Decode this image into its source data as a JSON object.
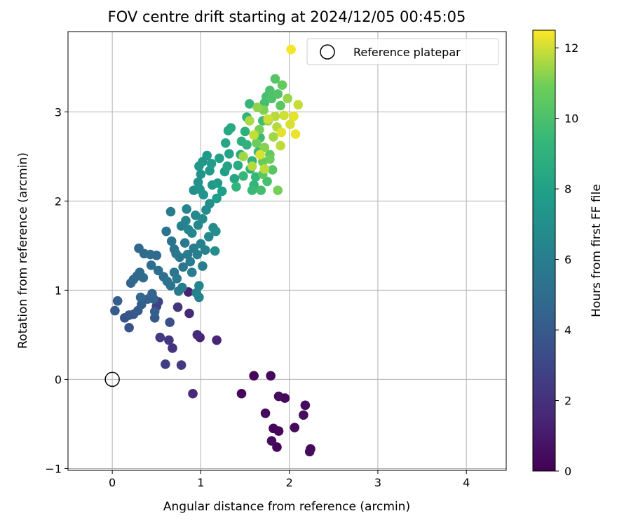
{
  "chart_data": {
    "type": "scatter",
    "title": "FOV centre drift starting at 2024/12/05 00:45:05",
    "xlabel": "Angular distance from reference (arcmin)",
    "ylabel": "Rotation from reference (arcmin)",
    "xlim": [
      -0.5,
      4.45
    ],
    "ylim": [
      -1.02,
      3.9
    ],
    "xticks": [
      0,
      1,
      2,
      3,
      4
    ],
    "yticks": [
      -1,
      0,
      1,
      2,
      3
    ],
    "xtick_labels": [
      "0",
      "1",
      "2",
      "3",
      "4"
    ],
    "ytick_labels": [
      "−1",
      "0",
      "1",
      "2",
      "3"
    ],
    "grid": true,
    "legend": {
      "location": "top-right",
      "entries": [
        {
          "label": "Reference platepar",
          "marker": "open-circle"
        }
      ]
    },
    "reference_point": {
      "x": 0,
      "y": 0,
      "label": "Reference platepar"
    },
    "colorbar": {
      "label": "Hours from first FF file",
      "colormap": "viridis",
      "range": [
        0,
        12.5
      ],
      "ticks": [
        0,
        2,
        4,
        6,
        8,
        10,
        12
      ],
      "tick_labels": [
        "0",
        "2",
        "4",
        "6",
        "8",
        "10",
        "12"
      ]
    },
    "series": [
      {
        "color_value_unit": "hours",
        "points": [
          [
            1.6,
            0.04,
            0.2
          ],
          [
            1.79,
            0.04,
            0.3
          ],
          [
            1.46,
            -0.16,
            0.2
          ],
          [
            1.88,
            -0.19,
            0.4
          ],
          [
            1.95,
            -0.21,
            0.3
          ],
          [
            2.18,
            -0.29,
            0.4
          ],
          [
            1.73,
            -0.38,
            0.3
          ],
          [
            2.16,
            -0.4,
            0.5
          ],
          [
            1.82,
            -0.55,
            0.2
          ],
          [
            1.88,
            -0.58,
            0.3
          ],
          [
            2.06,
            -0.54,
            0.4
          ],
          [
            1.8,
            -0.69,
            0.5
          ],
          [
            1.86,
            -0.76,
            0.2
          ],
          [
            2.24,
            -0.78,
            0.3
          ],
          [
            2.23,
            -0.81,
            0.4
          ],
          [
            0.91,
            -0.16,
            1.6
          ],
          [
            1.18,
            0.44,
            1.5
          ],
          [
            0.96,
            0.5,
            1.8
          ],
          [
            0.99,
            0.47,
            1.4
          ],
          [
            0.87,
            0.74,
            1.6
          ],
          [
            0.86,
            0.98,
            1.3
          ],
          [
            0.74,
            0.81,
            2.2
          ],
          [
            0.64,
            0.44,
            2.3
          ],
          [
            0.68,
            0.35,
            2.1
          ],
          [
            0.54,
            0.47,
            2.5
          ],
          [
            0.6,
            0.17,
            2.6
          ],
          [
            0.78,
            0.16,
            2.4
          ],
          [
            0.5,
            0.82,
            2.7
          ],
          [
            0.52,
            0.87,
            2.8
          ],
          [
            0.65,
            0.64,
            3.5
          ],
          [
            0.19,
            0.58,
            3.7
          ],
          [
            0.14,
            0.69,
            3.7
          ],
          [
            0.19,
            0.72,
            3.8
          ],
          [
            0.24,
            0.73,
            3.9
          ],
          [
            0.29,
            0.77,
            4.0
          ],
          [
            0.03,
            0.77,
            4.1
          ],
          [
            0.06,
            0.88,
            4.2
          ],
          [
            0.33,
            0.84,
            4.3
          ],
          [
            0.4,
            0.9,
            4.4
          ],
          [
            0.47,
            0.9,
            4.5
          ],
          [
            0.48,
            0.69,
            4.0
          ],
          [
            0.48,
            0.76,
            4.2
          ],
          [
            0.45,
            0.96,
            4.6
          ],
          [
            0.32,
            0.92,
            4.7
          ],
          [
            0.21,
            1.08,
            4.5
          ],
          [
            0.24,
            1.12,
            4.6
          ],
          [
            0.28,
            1.16,
            4.7
          ],
          [
            0.31,
            1.2,
            4.8
          ],
          [
            0.35,
            1.14,
            4.9
          ],
          [
            0.3,
            1.47,
            4.7
          ],
          [
            0.36,
            1.41,
            4.9
          ],
          [
            0.43,
            1.4,
            5.0
          ],
          [
            0.5,
            1.39,
            4.8
          ],
          [
            0.44,
            1.28,
            5.0
          ],
          [
            0.52,
            1.22,
            5.1
          ],
          [
            0.58,
            1.15,
            5.2
          ],
          [
            0.62,
            1.1,
            5.3
          ],
          [
            0.66,
            1.05,
            5.4
          ],
          [
            0.7,
            1.2,
            5.5
          ],
          [
            0.7,
            1.46,
            5.4
          ],
          [
            0.76,
            1.37,
            5.5
          ],
          [
            0.8,
            1.26,
            5.6
          ],
          [
            0.82,
            1.53,
            5.7
          ],
          [
            0.85,
            1.4,
            5.8
          ],
          [
            0.88,
            1.32,
            5.9
          ],
          [
            0.9,
            1.2,
            6.0
          ],
          [
            0.92,
            1.47,
            5.8
          ],
          [
            0.96,
            1.4,
            6.1
          ],
          [
            1.0,
            1.52,
            6.2
          ],
          [
            1.02,
            1.27,
            6.0
          ],
          [
            1.05,
            1.45,
            6.3
          ],
          [
            0.67,
            1.55,
            5.4
          ],
          [
            0.61,
            1.66,
            5.3
          ],
          [
            0.66,
            1.88,
            5.9
          ],
          [
            0.72,
            1.41,
            5.6
          ],
          [
            0.73,
            1.13,
            5.7
          ],
          [
            0.79,
            1.03,
            5.8
          ],
          [
            0.75,
            0.99,
            5.9
          ],
          [
            0.95,
            0.97,
            6.2
          ],
          [
            0.98,
            0.92,
            6.3
          ],
          [
            0.98,
            1.05,
            6.4
          ],
          [
            0.78,
            1.72,
            6.1
          ],
          [
            0.83,
            1.78,
            6.3
          ],
          [
            0.84,
            1.91,
            6.4
          ],
          [
            0.86,
            1.68,
            6.4
          ],
          [
            0.9,
            1.64,
            6.5
          ],
          [
            0.94,
            1.84,
            6.6
          ],
          [
            0.97,
            1.73,
            6.6
          ],
          [
            1.02,
            1.8,
            6.7
          ],
          [
            1.06,
            1.9,
            6.8
          ],
          [
            1.1,
            1.97,
            6.9
          ],
          [
            1.14,
            1.7,
            6.8
          ],
          [
            1.17,
            1.66,
            7.0
          ],
          [
            1.16,
            1.44,
            6.9
          ],
          [
            1.09,
            1.6,
            6.7
          ],
          [
            0.92,
            2.12,
            6.9
          ],
          [
            0.97,
            2.21,
            7.1
          ],
          [
            0.99,
            2.13,
            7.2
          ],
          [
            1.03,
            2.07,
            7.3
          ],
          [
            1.0,
            2.3,
            7.3
          ],
          [
            0.98,
            2.39,
            7.5
          ],
          [
            1.02,
            2.44,
            7.4
          ],
          [
            1.07,
            2.51,
            7.6
          ],
          [
            1.1,
            2.34,
            7.6
          ],
          [
            1.12,
            2.42,
            7.7
          ],
          [
            1.13,
            2.18,
            7.5
          ],
          [
            1.19,
            2.2,
            7.7
          ],
          [
            1.18,
            2.03,
            7.8
          ],
          [
            1.24,
            2.11,
            7.9
          ],
          [
            1.27,
            2.33,
            7.9
          ],
          [
            1.21,
            2.48,
            8.0
          ],
          [
            1.3,
            2.39,
            8.1
          ],
          [
            1.32,
            2.53,
            8.2
          ],
          [
            1.28,
            2.65,
            8.3
          ],
          [
            1.31,
            2.79,
            8.4
          ],
          [
            1.34,
            2.82,
            8.5
          ],
          [
            1.38,
            2.25,
            8.3
          ],
          [
            1.42,
            2.4,
            8.6
          ],
          [
            1.45,
            2.52,
            8.7
          ],
          [
            1.46,
            2.67,
            8.8
          ],
          [
            1.5,
            2.78,
            8.9
          ],
          [
            1.52,
            2.63,
            9.0
          ],
          [
            1.52,
            2.94,
            9.1
          ],
          [
            1.55,
            3.09,
            9.3
          ],
          [
            1.56,
            2.36,
            8.9
          ],
          [
            1.58,
            2.45,
            9.0
          ],
          [
            1.6,
            2.18,
            9.2
          ],
          [
            1.62,
            2.27,
            9.4
          ],
          [
            1.65,
            2.55,
            9.5
          ],
          [
            1.67,
            2.71,
            9.6
          ],
          [
            1.7,
            2.9,
            9.7
          ],
          [
            1.72,
            3.1,
            9.8
          ],
          [
            1.74,
            3.17,
            9.9
          ],
          [
            1.78,
            3.24,
            10.0
          ],
          [
            1.8,
            3.15,
            10.1
          ],
          [
            1.84,
            3.37,
            10.3
          ],
          [
            1.87,
            3.2,
            10.2
          ],
          [
            1.9,
            3.07,
            10.4
          ],
          [
            1.92,
            3.3,
            10.6
          ],
          [
            1.4,
            2.16,
            9.1
          ],
          [
            1.48,
            2.28,
            9.3
          ],
          [
            1.58,
            2.12,
            9.5
          ],
          [
            1.68,
            2.12,
            9.8
          ],
          [
            1.75,
            2.22,
            9.9
          ],
          [
            1.81,
            2.35,
            10.3
          ],
          [
            1.87,
            2.12,
            11.0
          ],
          [
            1.78,
            2.52,
            10.5
          ],
          [
            1.7,
            2.44,
            10.7
          ],
          [
            1.63,
            2.65,
            10.8
          ],
          [
            1.66,
            2.8,
            11.0
          ],
          [
            1.72,
            2.6,
            11.2
          ],
          [
            1.76,
            2.9,
            11.4
          ],
          [
            1.82,
            2.72,
            11.5
          ],
          [
            1.86,
            2.83,
            11.7
          ],
          [
            1.9,
            2.62,
            11.8
          ],
          [
            1.94,
            2.96,
            12.0
          ],
          [
            2.01,
            2.86,
            12.1
          ],
          [
            2.05,
            2.95,
            12.2
          ],
          [
            2.07,
            2.75,
            12.3
          ],
          [
            1.91,
            2.77,
            12.2
          ],
          [
            1.76,
            2.92,
            12.0
          ],
          [
            1.6,
            2.74,
            11.9
          ],
          [
            1.55,
            2.9,
            11.6
          ],
          [
            1.64,
            3.05,
            11.3
          ],
          [
            1.71,
            3.02,
            11.1
          ],
          [
            1.98,
            3.15,
            11.4
          ],
          [
            2.1,
            3.08,
            11.9
          ],
          [
            2.02,
            3.7,
            12.4
          ],
          [
            1.48,
            2.5,
            11.5
          ],
          [
            1.58,
            2.39,
            11.7
          ],
          [
            1.72,
            2.36,
            11.8
          ],
          [
            1.67,
            2.52,
            12.1
          ],
          [
            1.84,
            2.95,
            11.7
          ],
          [
            1.78,
            2.47,
            10.9
          ],
          [
            1.7,
            2.3,
            10.4
          ]
        ]
      }
    ]
  }
}
